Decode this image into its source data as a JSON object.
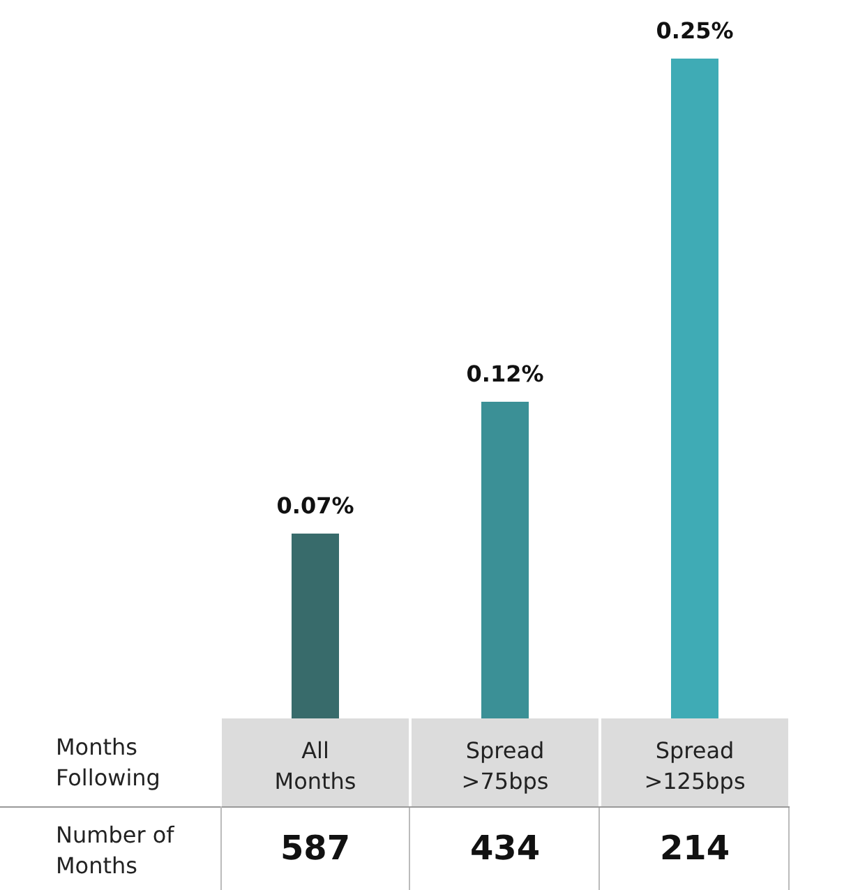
{
  "chart_data": {
    "type": "bar",
    "categories": [
      "All Months",
      "Spread >75bps",
      "Spread >125bps"
    ],
    "values": [
      0.07,
      0.12,
      0.25
    ],
    "colors": [
      "#386b6b",
      "#3b9096",
      "#3fabb5"
    ],
    "value_labels": [
      "0.07%",
      "0.12%",
      "0.25%"
    ],
    "annotations": [
      "Months Following",
      "Number of Months",
      "587",
      "434",
      "214"
    ]
  }
}
